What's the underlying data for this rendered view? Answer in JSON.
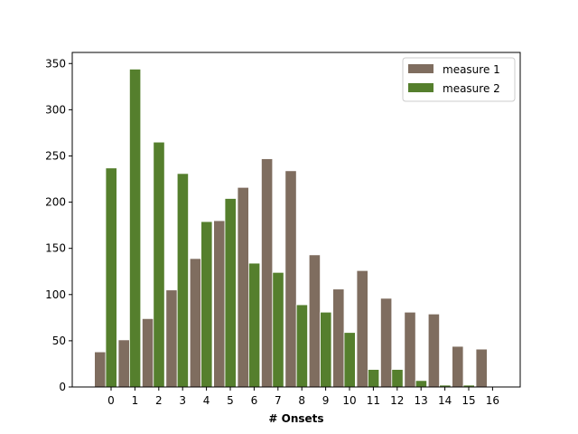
{
  "chart_data": {
    "type": "bar",
    "title": "",
    "xlabel": "# Onsets",
    "ylabel": "",
    "categories": [
      "0",
      "1",
      "2",
      "3",
      "4",
      "5",
      "6",
      "7",
      "8",
      "9",
      "10",
      "11",
      "12",
      "13",
      "14",
      "15",
      "16"
    ],
    "ylim": [
      0,
      362
    ],
    "yticks": [
      0,
      50,
      100,
      150,
      200,
      250,
      300,
      350
    ],
    "legend_position": "top-right",
    "grid": false,
    "series": [
      {
        "name": "measure 1",
        "color": "#7f6d5f",
        "values": [
          38,
          51,
          74,
          105,
          139,
          180,
          216,
          247,
          234,
          143,
          106,
          126,
          96,
          81,
          79,
          44,
          41
        ]
      },
      {
        "name": "measure 2",
        "color": "#557f2d",
        "values": [
          237,
          344,
          265,
          231,
          179,
          204,
          134,
          124,
          89,
          81,
          59,
          19,
          19,
          7,
          2,
          2,
          0
        ]
      }
    ]
  }
}
